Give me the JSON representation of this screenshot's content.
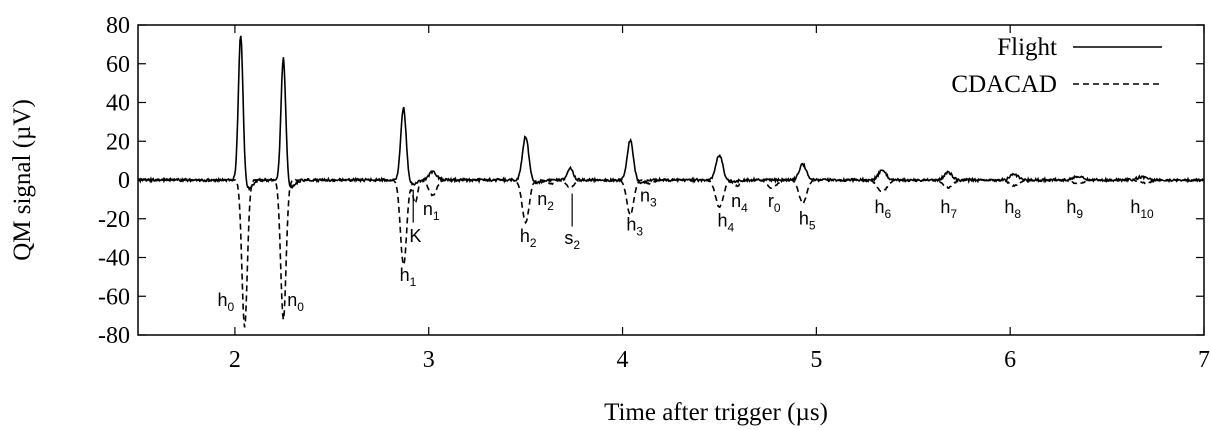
{
  "chart_data": {
    "type": "line",
    "title": "",
    "xlabel": "Time after trigger (µs)",
    "ylabel": "QM signal (µV)",
    "xlim": [
      1.5,
      7
    ],
    "ylim": [
      -80,
      80
    ],
    "xticks": [
      2,
      3,
      4,
      5,
      6,
      7
    ],
    "yticks": [
      80,
      60,
      40,
      20,
      0,
      -20,
      -40,
      -60,
      -80
    ],
    "ytick_labels": [
      "80",
      "60",
      "40",
      "20",
      "0",
      "-20",
      "-40",
      "-60",
      "-80"
    ],
    "grid": false,
    "legend": "top-right",
    "series": [
      {
        "name": "Flight",
        "style": "solid",
        "color": "#000000",
        "peaks": [
          {
            "t": 2.03,
            "a": 76,
            "w": 0.012
          },
          {
            "t": 2.25,
            "a": 64,
            "w": 0.012
          },
          {
            "t": 2.87,
            "a": 38,
            "w": 0.014
          },
          {
            "t": 3.02,
            "a": 4,
            "w": 0.02
          },
          {
            "t": 3.5,
            "a": 23,
            "w": 0.016
          },
          {
            "t": 3.73,
            "a": 6,
            "w": 0.015
          },
          {
            "t": 4.04,
            "a": 21,
            "w": 0.016
          },
          {
            "t": 4.5,
            "a": 13,
            "w": 0.018
          },
          {
            "t": 4.93,
            "a": 8,
            "w": 0.018
          },
          {
            "t": 5.34,
            "a": 5,
            "w": 0.02
          },
          {
            "t": 5.68,
            "a": 4,
            "w": 0.02
          },
          {
            "t": 6.02,
            "a": 3,
            "w": 0.02
          },
          {
            "t": 6.35,
            "a": 2,
            "w": 0.025
          },
          {
            "t": 6.68,
            "a": 1.5,
            "w": 0.025
          }
        ]
      },
      {
        "name": "CDACAD",
        "style": "dashed",
        "color": "#000000",
        "peaks": [
          {
            "t": 2.05,
            "a": -76,
            "w": 0.014
          },
          {
            "t": 2.25,
            "a": -72,
            "w": 0.014
          },
          {
            "t": 2.87,
            "a": -44,
            "w": 0.016
          },
          {
            "t": 2.93,
            "a": -12,
            "w": 0.012
          },
          {
            "t": 3.02,
            "a": -8,
            "w": 0.02
          },
          {
            "t": 3.5,
            "a": -22,
            "w": 0.018
          },
          {
            "t": 3.63,
            "a": -2,
            "w": 0.02
          },
          {
            "t": 3.73,
            "a": -4,
            "w": 0.02
          },
          {
            "t": 4.04,
            "a": -18,
            "w": 0.018
          },
          {
            "t": 4.14,
            "a": -2,
            "w": 0.02
          },
          {
            "t": 4.5,
            "a": -14,
            "w": 0.02
          },
          {
            "t": 4.59,
            "a": -3,
            "w": 0.02
          },
          {
            "t": 4.77,
            "a": -4,
            "w": 0.025
          },
          {
            "t": 4.93,
            "a": -12,
            "w": 0.02
          },
          {
            "t": 5.34,
            "a": -6,
            "w": 0.025
          },
          {
            "t": 5.68,
            "a": -4,
            "w": 0.025
          },
          {
            "t": 6.02,
            "a": -3,
            "w": 0.025
          },
          {
            "t": 6.35,
            "a": -2,
            "w": 0.03
          },
          {
            "t": 6.7,
            "a": -1.5,
            "w": 0.03
          }
        ]
      }
    ],
    "annotations": [
      {
        "base": "h",
        "sub": "0",
        "x": 1.91,
        "y": -65
      },
      {
        "base": "n",
        "sub": "0",
        "x": 2.27,
        "y": -65
      },
      {
        "base": "h",
        "sub": "1",
        "x": 2.85,
        "y": -52
      },
      {
        "base": "K",
        "sub": "",
        "x": 2.9,
        "y": -32
      },
      {
        "base": "n",
        "sub": "1",
        "x": 2.97,
        "y": -18
      },
      {
        "base": "h",
        "sub": "2",
        "x": 3.47,
        "y": -32
      },
      {
        "base": "n",
        "sub": "2",
        "x": 3.56,
        "y": -13
      },
      {
        "base": "s",
        "sub": "2",
        "x": 3.7,
        "y": -33
      },
      {
        "base": "h",
        "sub": "3",
        "x": 4.02,
        "y": -26
      },
      {
        "base": "n",
        "sub": "3",
        "x": 4.09,
        "y": -11
      },
      {
        "base": "h",
        "sub": "4",
        "x": 4.49,
        "y": -24
      },
      {
        "base": "n",
        "sub": "4",
        "x": 4.56,
        "y": -14
      },
      {
        "base": "r",
        "sub": "0",
        "x": 4.75,
        "y": -14
      },
      {
        "base": "h",
        "sub": "5",
        "x": 4.91,
        "y": -23
      },
      {
        "base": "h",
        "sub": "6",
        "x": 5.3,
        "y": -17
      },
      {
        "base": "h",
        "sub": "7",
        "x": 5.64,
        "y": -17
      },
      {
        "base": "h",
        "sub": "8",
        "x": 5.97,
        "y": -17
      },
      {
        "base": "h",
        "sub": "9",
        "x": 6.29,
        "y": -17
      },
      {
        "base": "h",
        "sub": "10",
        "x": 6.62,
        "y": -17
      }
    ],
    "markers": [
      {
        "x": 2.92,
        "y1": -22,
        "y2": -5
      },
      {
        "x": 3.74,
        "y1": -24,
        "y2": -7
      }
    ]
  }
}
